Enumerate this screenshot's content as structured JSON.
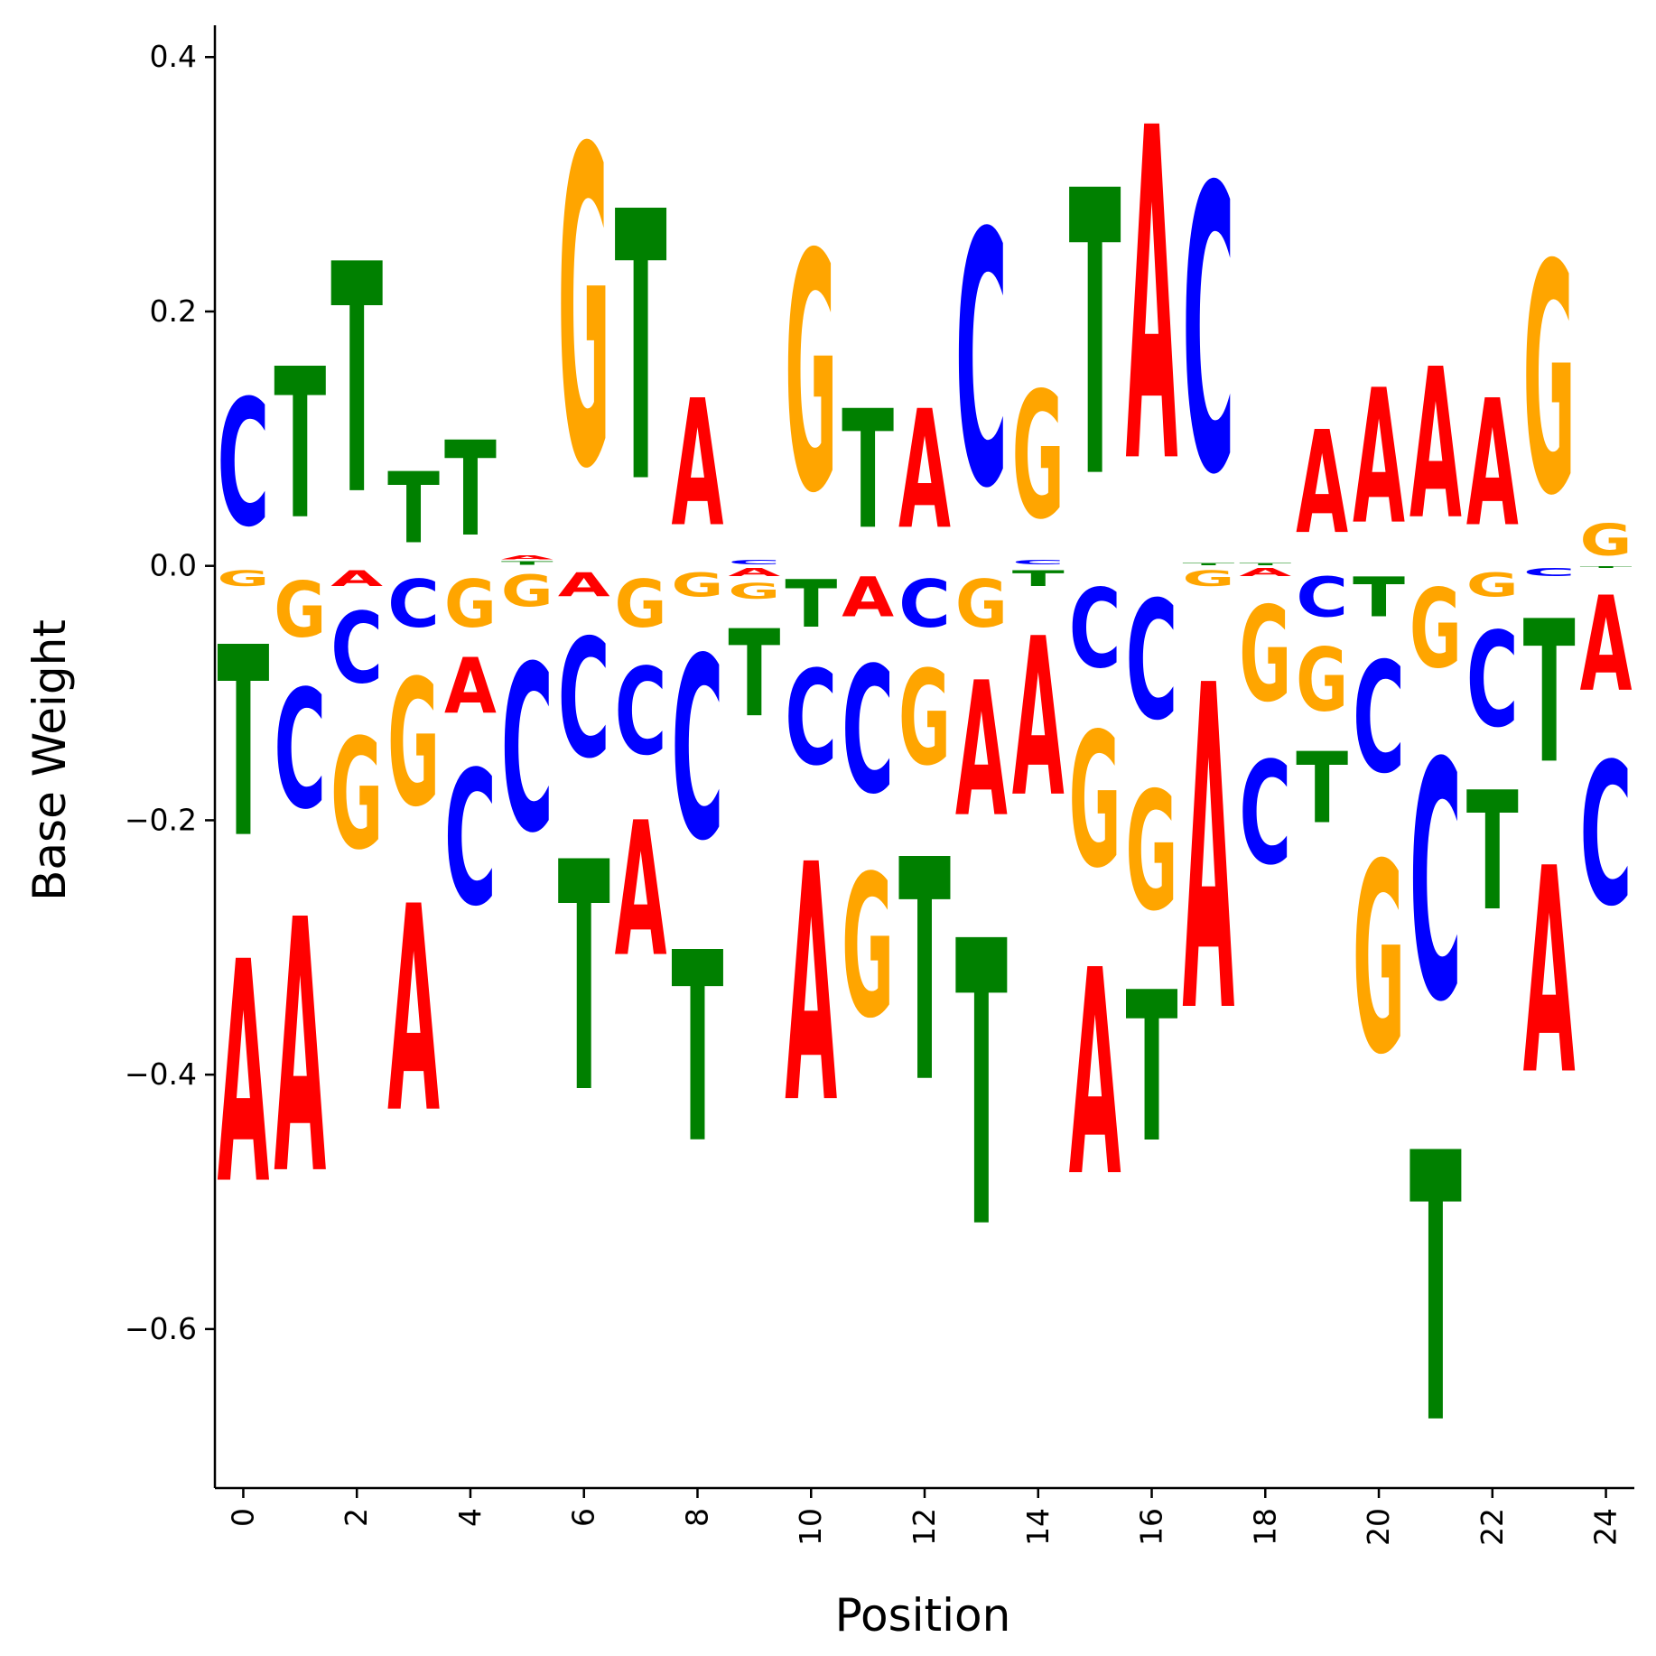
{
  "chart_data": {
    "type": "sequence-logo",
    "xlabel": "Position",
    "ylabel": "Base Weight",
    "ylim": [
      -0.725,
      0.425
    ],
    "xlim": [
      -0.5,
      24.5
    ],
    "yticks": [
      -0.6,
      -0.4,
      -0.2,
      0.0,
      0.2,
      0.4
    ],
    "ytick_labels": [
      "−0.6",
      "−0.4",
      "−0.2",
      "0.0",
      "0.2",
      "0.4"
    ],
    "xticks": [
      0,
      2,
      4,
      6,
      8,
      10,
      12,
      14,
      16,
      18,
      20,
      22,
      24
    ],
    "xtick_labels": [
      "0",
      "2",
      "4",
      "6",
      "8",
      "10",
      "12",
      "14",
      "16",
      "18",
      "20",
      "22",
      "24"
    ],
    "colors": {
      "A": "#ff0000",
      "C": "#0000ff",
      "G": "#ffa500",
      "T": "#008000"
    },
    "positions": [
      {
        "pos": 0,
        "A": -0.28,
        "C": 0.16,
        "G": -0.02,
        "T": -0.24
      },
      {
        "pos": 1,
        "A": -0.32,
        "C": -0.15,
        "G": -0.07,
        "T": 0.19
      },
      {
        "pos": 2,
        "A": -0.02,
        "C": -0.09,
        "G": -0.14,
        "T": 0.29
      },
      {
        "pos": 3,
        "A": -0.26,
        "C": -0.06,
        "G": -0.16,
        "T": 0.09
      },
      {
        "pos": 4,
        "A": -0.07,
        "C": -0.17,
        "G": -0.06,
        "T": 0.12
      },
      {
        "pos": 5,
        "A": 0.005,
        "C": -0.21,
        "G": -0.04,
        "T": 0.004
      },
      {
        "pos": 6,
        "A": -0.03,
        "C": -0.15,
        "G": 0.4,
        "T": -0.29
      },
      {
        "pos": 7,
        "A": -0.17,
        "C": -0.11,
        "G": -0.06,
        "T": 0.34
      },
      {
        "pos": 8,
        "A": 0.16,
        "C": -0.23,
        "G": -0.03,
        "T": -0.24
      },
      {
        "pos": 9,
        "A": -0.01,
        "C": 0.006,
        "G": -0.02,
        "T": -0.11
      },
      {
        "pos": 10,
        "A": -0.3,
        "C": -0.12,
        "G": 0.3,
        "T": -0.06
      },
      {
        "pos": 11,
        "A": -0.05,
        "C": -0.16,
        "G": -0.18,
        "T": 0.15
      },
      {
        "pos": 12,
        "A": 0.15,
        "C": -0.06,
        "G": -0.12,
        "T": -0.28
      },
      {
        "pos": 13,
        "A": -0.17,
        "C": 0.32,
        "G": -0.06,
        "T": -0.36
      },
      {
        "pos": 14,
        "A": -0.2,
        "C": 0.006,
        "G": 0.16,
        "T": -0.02
      },
      {
        "pos": 15,
        "A": -0.26,
        "C": -0.1,
        "G": -0.17,
        "T": 0.36
      },
      {
        "pos": 16,
        "A": 0.42,
        "C": -0.15,
        "G": -0.15,
        "T": -0.19
      },
      {
        "pos": 17,
        "A": -0.41,
        "C": 0.36,
        "G": -0.02,
        "T": 0.003
      },
      {
        "pos": 18,
        "A": -0.01,
        "C": -0.13,
        "G": -0.12,
        "T": 0.003
      },
      {
        "pos": 19,
        "A": 0.13,
        "C": -0.05,
        "G": -0.08,
        "T": -0.09
      },
      {
        "pos": 20,
        "A": 0.17,
        "C": -0.14,
        "G": -0.24,
        "T": -0.05
      },
      {
        "pos": 21,
        "A": 0.19,
        "C": -0.3,
        "G": -0.1,
        "T": -0.34
      },
      {
        "pos": 22,
        "A": 0.16,
        "C": -0.12,
        "G": -0.03,
        "T": -0.15
      },
      {
        "pos": 23,
        "A": -0.26,
        "C": -0.01,
        "G": 0.29,
        "T": -0.18
      },
      {
        "pos": 24,
        "A": -0.12,
        "C": -0.18,
        "G": 0.04,
        "T": -0.002
      }
    ]
  }
}
